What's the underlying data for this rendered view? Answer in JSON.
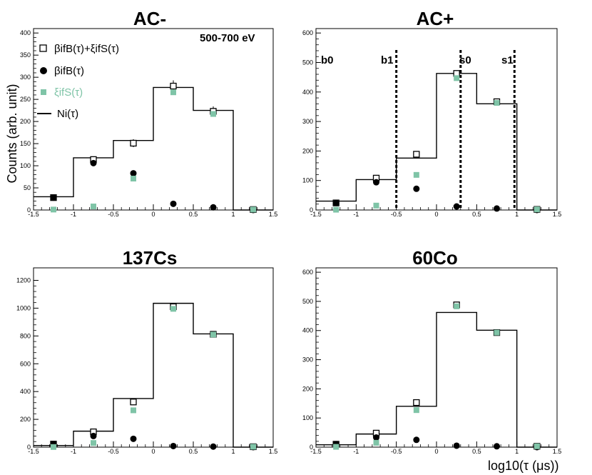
{
  "figure": {
    "y_axis_label": "Counts (arb. unit)",
    "x_axis_label": "log10(τ (μs))",
    "energy_range_label": "500-700 eV",
    "legend": {
      "sum": "βifB(τ)+ξifS(τ)",
      "bkg": "βifB(τ)",
      "sig": "ξifS(τ)",
      "total": "Ni(τ)"
    },
    "colors": {
      "signal": "#7fc4a7",
      "black": "#000000"
    }
  },
  "chart_data": [
    {
      "type": "bar",
      "title": "AC-",
      "bin_edges": [
        -1.5,
        -1,
        -0.5,
        0,
        0.5,
        1,
        1.5
      ],
      "x": [
        -1.25,
        -0.75,
        -0.25,
        0.25,
        0.75,
        1.25
      ],
      "xlim": [
        -1.5,
        1.5
      ],
      "xticks": [
        -1.5,
        -1,
        -0.5,
        0,
        0.5,
        1,
        1.5
      ],
      "ylim": [
        0,
        410
      ],
      "yticks": [
        0,
        50,
        100,
        150,
        200,
        250,
        300,
        350,
        400
      ],
      "series": [
        {
          "name": "Ni(τ)",
          "kind": "step",
          "values": [
            30,
            118,
            157,
            277,
            225,
            0
          ]
        },
        {
          "name": "βifB(τ)+ξifS(τ)",
          "kind": "open-square",
          "values": [
            28,
            114,
            151,
            280,
            223,
            1
          ],
          "errors": [
            3,
            5,
            9,
            13,
            11,
            1
          ]
        },
        {
          "name": "βifB(τ)",
          "kind": "dot",
          "values": [
            28,
            106,
            83,
            14,
            6,
            0
          ]
        },
        {
          "name": "ξifS(τ)",
          "kind": "green-square",
          "values": [
            1,
            8,
            71,
            266,
            217,
            1
          ]
        }
      ]
    },
    {
      "type": "bar",
      "title": "AC+",
      "bin_edges": [
        -1.5,
        -1,
        -0.5,
        0,
        0.5,
        1,
        1.5
      ],
      "x": [
        -1.25,
        -0.75,
        -0.25,
        0.25,
        0.75,
        1.25
      ],
      "xlim": [
        -1.5,
        1.5
      ],
      "xticks": [
        -1.5,
        -1,
        -0.5,
        0,
        0.5,
        1,
        1.5
      ],
      "ylim": [
        0,
        615
      ],
      "yticks": [
        0,
        100,
        200,
        300,
        400,
        500,
        600
      ],
      "series": [
        {
          "name": "Ni(τ)",
          "kind": "step",
          "values": [
            30,
            103,
            176,
            463,
            360,
            0
          ]
        },
        {
          "name": "βifB(τ)+ξifS(τ)",
          "kind": "open-square",
          "values": [
            24,
            108,
            189,
            463,
            367,
            2
          ],
          "errors": [
            3,
            5,
            7,
            9,
            9,
            1
          ]
        },
        {
          "name": "βifB(τ)",
          "kind": "dot",
          "values": [
            24,
            94,
            72,
            12,
            5,
            0
          ]
        },
        {
          "name": "ξifS(τ)",
          "kind": "green-square",
          "values": [
            1,
            15,
            119,
            447,
            363,
            2
          ]
        }
      ],
      "cuts": [
        {
          "label": "b0",
          "x": -1.5
        },
        {
          "label": "b1",
          "x": -0.5
        },
        {
          "label": "s0",
          "x": 0.3
        },
        {
          "label": "s1",
          "x": 0.97
        }
      ]
    },
    {
      "type": "bar",
      "title": "137Cs",
      "bin_edges": [
        -1.5,
        -1,
        -0.5,
        0,
        0.5,
        1,
        1.5
      ],
      "x": [
        -1.25,
        -0.75,
        -0.25,
        0.25,
        0.75,
        1.25
      ],
      "xlim": [
        -1.5,
        1.5
      ],
      "xticks": [
        -1.5,
        -1,
        -0.5,
        0,
        0.5,
        1,
        1.5
      ],
      "ylim": [
        0,
        1290
      ],
      "yticks": [
        0,
        200,
        400,
        600,
        800,
        1000,
        1200
      ],
      "series": [
        {
          "name": "Ni(τ)",
          "kind": "step",
          "values": [
            12,
            115,
            350,
            1035,
            815,
            0
          ]
        },
        {
          "name": "βifB(τ)+ξifS(τ)",
          "kind": "open-square",
          "values": [
            22,
            110,
            325,
            1010,
            812,
            3
          ],
          "errors": [
            4,
            8,
            12,
            15,
            12,
            1
          ]
        },
        {
          "name": "βifB(τ)",
          "kind": "dot",
          "values": [
            22,
            80,
            60,
            8,
            4,
            0
          ]
        },
        {
          "name": "ξifS(τ)",
          "kind": "green-square",
          "values": [
            1,
            30,
            265,
            995,
            810,
            3
          ]
        }
      ]
    },
    {
      "type": "bar",
      "title": "60Co",
      "bin_edges": [
        -1.5,
        -1,
        -0.5,
        0,
        0.5,
        1,
        1.5
      ],
      "x": [
        -1.25,
        -0.75,
        -0.25,
        0.25,
        0.75,
        1.25
      ],
      "xlim": [
        -1.5,
        1.5
      ],
      "xticks": [
        -1.5,
        -1,
        -0.5,
        0,
        0.5,
        1,
        1.5
      ],
      "ylim": [
        0,
        615
      ],
      "yticks": [
        0,
        100,
        200,
        300,
        400,
        500,
        600
      ],
      "series": [
        {
          "name": "Ni(τ)",
          "kind": "step",
          "values": [
            8,
            45,
            140,
            462,
            401,
            0
          ]
        },
        {
          "name": "βifB(τ)+ξifS(τ)",
          "kind": "open-square",
          "values": [
            10,
            48,
            153,
            488,
            393,
            3
          ],
          "errors": [
            2,
            4,
            6,
            10,
            9,
            1
          ]
        },
        {
          "name": "βifB(τ)",
          "kind": "dot",
          "values": [
            10,
            33,
            25,
            5,
            3,
            0
          ]
        },
        {
          "name": "ξifS(τ)",
          "kind": "green-square",
          "values": [
            1,
            15,
            127,
            483,
            393,
            3
          ]
        }
      ]
    }
  ]
}
